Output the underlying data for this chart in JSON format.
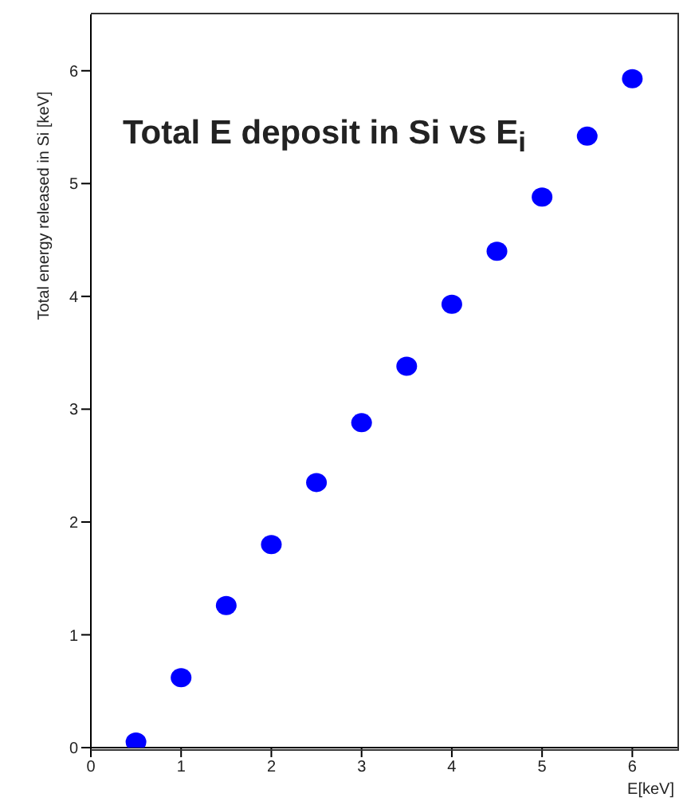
{
  "chart_data": {
    "type": "scatter",
    "title": "Total E deposit  in Si vs E$_{i}$",
    "xlabel": "E[keV]",
    "ylabel": "Total energy released in Si [keV]",
    "x": [
      0.5,
      1,
      1.5,
      2,
      2.5,
      3,
      3.5,
      4,
      4.5,
      5,
      5.5,
      6
    ],
    "series": [
      {
        "color": "#0000ff",
        "values": [
          0.05,
          0.62,
          1.26,
          1.8,
          2.35,
          2.88,
          3.38,
          3.93,
          4.4,
          4.88,
          5.42,
          5.93
        ]
      }
    ],
    "xlim": [
      0,
      6.5
    ],
    "xticks": [
      0,
      1,
      2,
      3,
      4,
      5,
      6
    ],
    "ylim": [
      0,
      6.5
    ],
    "yticks": [
      0,
      1,
      2,
      3,
      4,
      5,
      6
    ],
    "marker": "circle",
    "grid": false
  }
}
